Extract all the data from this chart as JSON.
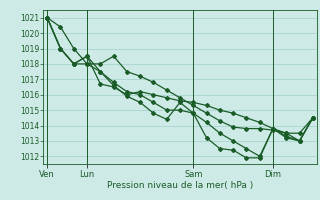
{
  "title": "",
  "xlabel": "Pression niveau de la mer( hPa )",
  "ylabel": "",
  "background_color": "#ceeae6",
  "grid_color": "#a8d4d0",
  "line_color": "#1a5c28",
  "ylim": [
    1011.5,
    1021.5
  ],
  "yticks": [
    1012,
    1013,
    1014,
    1015,
    1016,
    1017,
    1018,
    1019,
    1020,
    1021
  ],
  "day_labels": [
    "Ven",
    "Lun",
    "Sam",
    "Dim"
  ],
  "day_positions": [
    0,
    3,
    11,
    17
  ],
  "n_points": 21,
  "series1": [
    1021.0,
    1020.4,
    1019.0,
    1018.0,
    1018.0,
    1018.5,
    1017.5,
    1017.2,
    1016.8,
    1016.3,
    1015.8,
    1015.3,
    1014.8,
    1014.3,
    1013.9,
    1013.8,
    1013.8,
    1013.7,
    1013.5,
    1013.5,
    1014.5
  ],
  "series2": [
    1021.0,
    1019.0,
    1018.0,
    1018.5,
    1017.5,
    1016.6,
    1015.9,
    1015.5,
    1014.8,
    1014.4,
    1015.5,
    1014.8,
    1013.2,
    1012.5,
    1012.4,
    1011.9,
    1011.9,
    1013.8,
    1013.3,
    1013.0,
    1014.5
  ],
  "series3": [
    1021.0,
    1019.0,
    1018.0,
    1018.5,
    1016.7,
    1016.5,
    1016.0,
    1016.2,
    1016.0,
    1015.8,
    1015.6,
    1015.5,
    1015.3,
    1015.0,
    1014.8,
    1014.5,
    1014.2,
    1013.8,
    1013.5,
    1013.0,
    1014.5
  ],
  "series4": [
    1021.0,
    1019.0,
    1018.0,
    1018.0,
    1017.5,
    1016.8,
    1016.2,
    1016.0,
    1015.5,
    1015.0,
    1015.0,
    1014.8,
    1014.2,
    1013.5,
    1013.0,
    1012.5,
    1012.0,
    1013.8,
    1013.2,
    1013.0,
    1014.5
  ],
  "marker_size": 2.0,
  "line_width": 0.9,
  "ytick_fontsize": 5.5,
  "xtick_fontsize": 6.0,
  "xlabel_fontsize": 6.5
}
